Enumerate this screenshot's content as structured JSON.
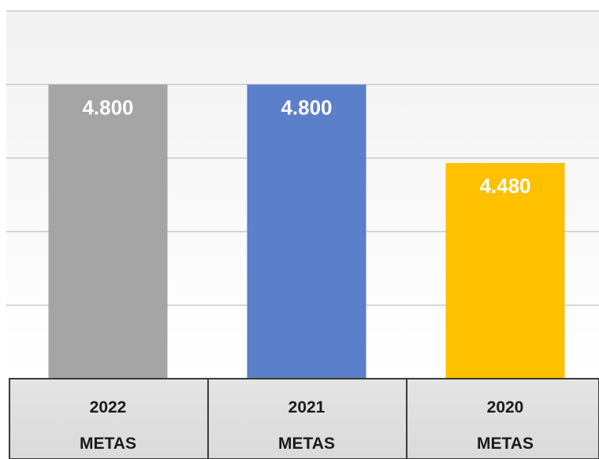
{
  "chart_data": {
    "type": "bar",
    "categories": [
      "2022",
      "2021",
      "2020"
    ],
    "category_sublabel": "METAS",
    "values": [
      4800,
      4800,
      4480
    ],
    "value_labels": [
      "4.800",
      "4.800",
      "4.480"
    ],
    "colors": [
      "#a5a5a5",
      "#5b7fc9",
      "#ffc000"
    ],
    "ylim": [
      3600,
      5100
    ],
    "grid": true,
    "title": "",
    "xlabel": "",
    "ylabel": ""
  }
}
